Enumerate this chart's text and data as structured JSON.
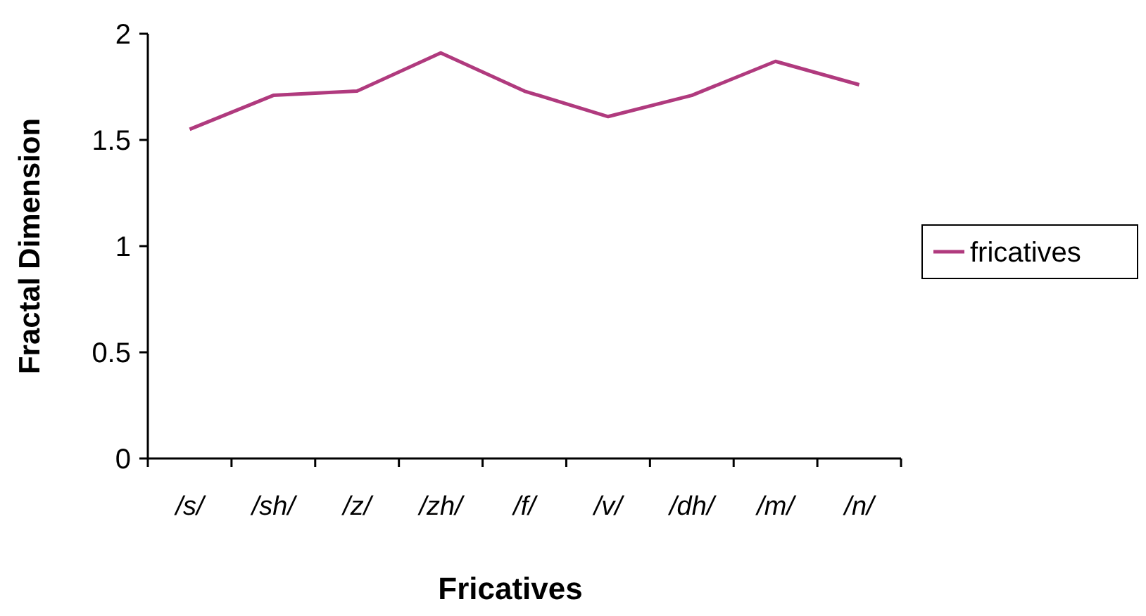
{
  "chart_data": {
    "type": "line",
    "xlabel": "Fricatives",
    "ylabel": "Fractal Dimension",
    "categories": [
      "/s/",
      "/sh/",
      "/z/",
      "/zh/",
      "/f/",
      "/v/",
      "/dh/",
      "/m/",
      "/n/"
    ],
    "series": [
      {
        "name": "fricatives",
        "color": "#b03a7e",
        "values": [
          1.55,
          1.71,
          1.73,
          1.91,
          1.73,
          1.61,
          1.71,
          1.87,
          1.76
        ]
      }
    ],
    "ylim": [
      0,
      2
    ],
    "yticks": [
      0,
      0.5,
      1,
      1.5,
      2
    ],
    "legend": "right",
    "marker": "none",
    "line_style": "solid",
    "grid": false
  }
}
